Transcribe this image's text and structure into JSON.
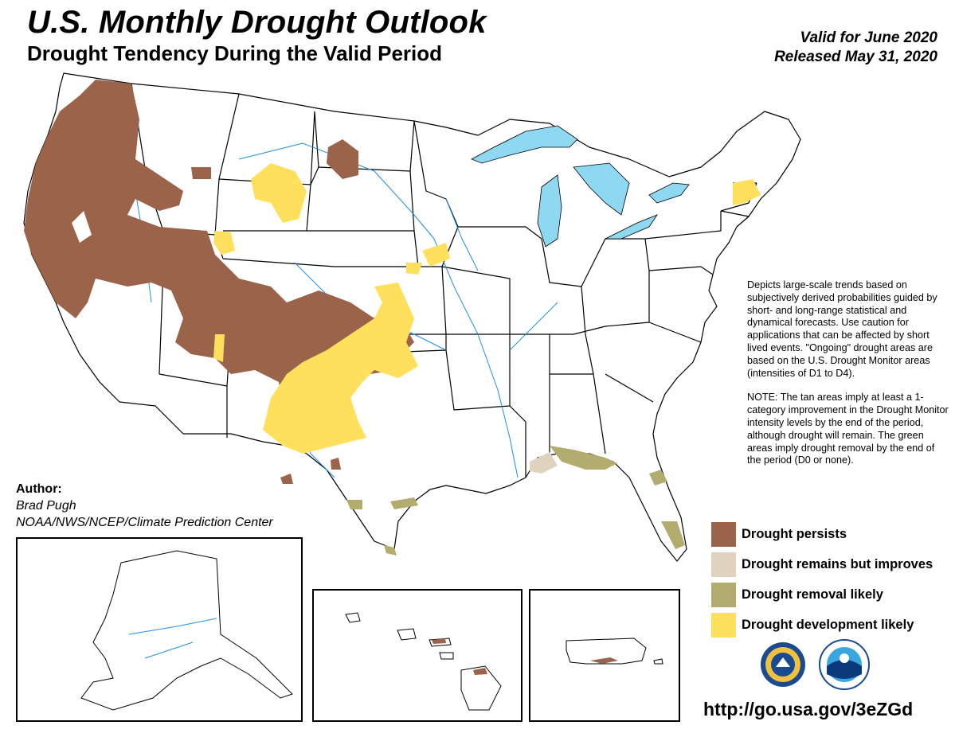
{
  "header": {
    "title": "U.S. Monthly Drought Outlook",
    "subtitle": "Drought Tendency During the Valid Period",
    "valid": "Valid for June 2020",
    "released": "Released May 31, 2020"
  },
  "author": {
    "label": "Author:",
    "name": "Brad Pugh",
    "org": "NOAA/NWS/NCEP/Climate Prediction Center"
  },
  "description": {
    "para1": "Depicts large-scale trends based on subjectively derived probabilities guided by short- and long-range statistical and dynamical forecasts. Use caution for applications that can be affected by short lived events. \"Ongoing\" drought areas are based on the U.S. Drought Monitor areas (intensities of D1 to D4).",
    "para2": "NOTE: The tan areas imply at least a 1-category improvement in the Drought Monitor intensity levels by the end of the period, although drought will remain. The green areas imply drought removal by the end of the period (D0 or none)."
  },
  "legend": [
    {
      "label": "Drought persists",
      "color": "#9b634a"
    },
    {
      "label": "Drought remains but improves",
      "color": "#dfd3bf"
    },
    {
      "label": "Drought removal likely",
      "color": "#b2ad6f"
    },
    {
      "label": "Drought development likely",
      "color": "#ffe05c"
    }
  ],
  "colors": {
    "persists": "#9b634a",
    "improves": "#dfd3bf",
    "removal": "#b2ad6f",
    "development": "#ffe05c",
    "water": "#8fd8f2",
    "rivers": "#1f8fe0",
    "boundaries": "#000000"
  },
  "logos": [
    "noaa-logo",
    "nws-logo"
  ],
  "url": "http://go.usa.gov/3eZGd"
}
